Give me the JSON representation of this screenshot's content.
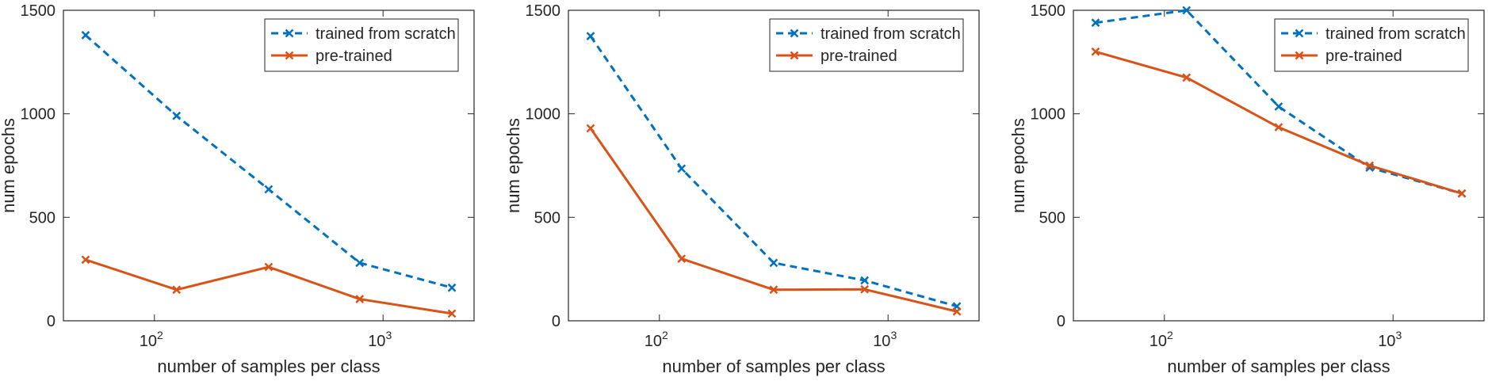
{
  "chart_data": [
    {
      "type": "line",
      "xlabel": "number of samples per class",
      "ylabel": "num epochs",
      "xscale": "log",
      "xlim": [
        40,
        2500
      ],
      "ylim": [
        0,
        1500
      ],
      "yticks": [
        0,
        500,
        1000,
        1500
      ],
      "xticks": [
        {
          "value": 100,
          "base": "10",
          "exp": "2"
        },
        {
          "value": 1000,
          "base": "10",
          "exp": "3"
        }
      ],
      "grid": true,
      "legend": "top-right",
      "series": [
        {
          "name": "trained from scratch",
          "style": "dashed",
          "color": "#0072BD",
          "x": [
            50,
            125,
            316,
            790,
            2000
          ],
          "y": [
            1380,
            990,
            635,
            280,
            160
          ]
        },
        {
          "name": "pre-trained",
          "style": "solid",
          "color": "#D95319",
          "x": [
            50,
            125,
            316,
            790,
            2000
          ],
          "y": [
            295,
            150,
            260,
            105,
            35
          ]
        }
      ]
    },
    {
      "type": "line",
      "xlabel": "number of samples per class",
      "ylabel": "num epochs",
      "xscale": "log",
      "xlim": [
        40,
        2500
      ],
      "ylim": [
        0,
        1500
      ],
      "yticks": [
        0,
        500,
        1000,
        1500
      ],
      "xticks": [
        {
          "value": 100,
          "base": "10",
          "exp": "2"
        },
        {
          "value": 1000,
          "base": "10",
          "exp": "3"
        }
      ],
      "grid": true,
      "legend": "top-right",
      "series": [
        {
          "name": "trained from scratch",
          "style": "dashed",
          "color": "#0072BD",
          "x": [
            50,
            125,
            316,
            790,
            2000
          ],
          "y": [
            1375,
            735,
            280,
            195,
            70
          ]
        },
        {
          "name": "pre-trained",
          "style": "solid",
          "color": "#D95319",
          "x": [
            50,
            125,
            316,
            790,
            2000
          ],
          "y": [
            930,
            300,
            150,
            152,
            45
          ]
        }
      ]
    },
    {
      "type": "line",
      "xlabel": "number of samples per class",
      "ylabel": "num epochs",
      "xscale": "log",
      "xlim": [
        40,
        2500
      ],
      "ylim": [
        0,
        1500
      ],
      "yticks": [
        0,
        500,
        1000,
        1500
      ],
      "xticks": [
        {
          "value": 100,
          "base": "10",
          "exp": "2"
        },
        {
          "value": 1000,
          "base": "10",
          "exp": "3"
        }
      ],
      "grid": true,
      "legend": "top-right",
      "series": [
        {
          "name": "trained from scratch",
          "style": "dashed",
          "color": "#0072BD",
          "x": [
            50,
            125,
            316,
            790,
            2000
          ],
          "y": [
            1440,
            1500,
            1035,
            740,
            615
          ]
        },
        {
          "name": "pre-trained",
          "style": "solid",
          "color": "#D95319",
          "x": [
            50,
            125,
            316,
            790,
            2000
          ],
          "y": [
            1300,
            1175,
            935,
            750,
            615
          ]
        }
      ]
    }
  ]
}
